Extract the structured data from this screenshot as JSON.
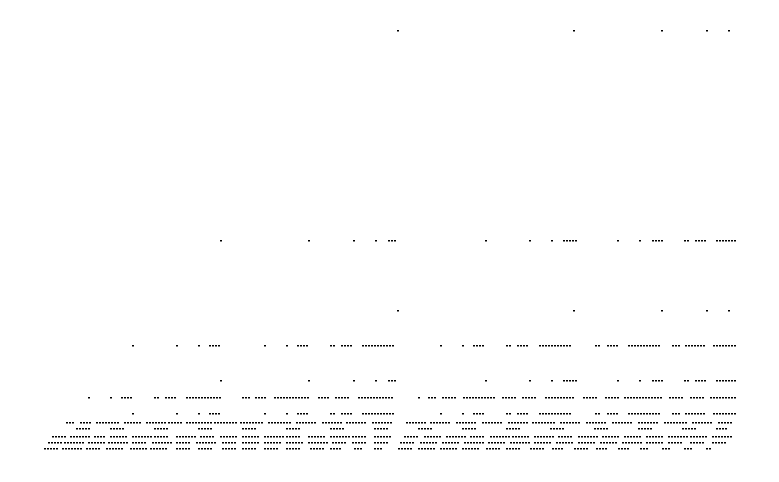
{
  "figure": {
    "type": "dot-pattern",
    "background_color": "#ffffff",
    "dot_color": "#000000"
  }
}
